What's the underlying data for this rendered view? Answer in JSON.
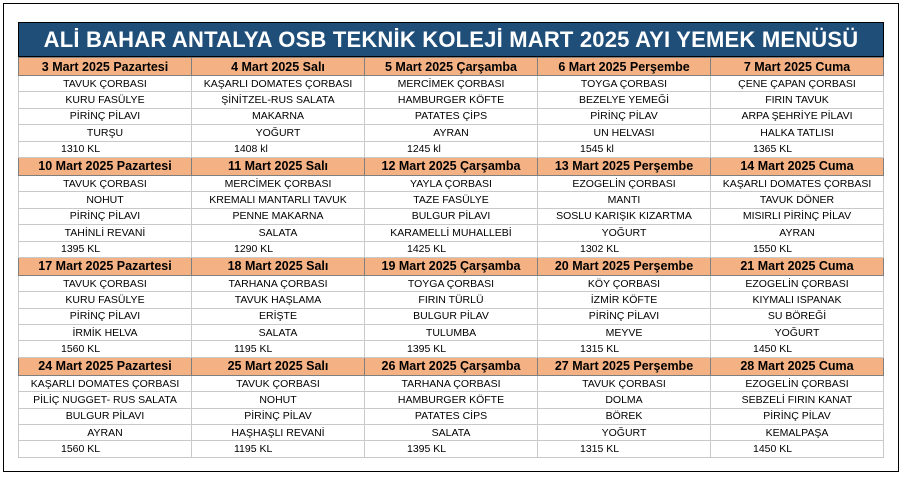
{
  "title": "ALİ BAHAR ANTALYA OSB TEKNİK KOLEJİ MART 2025 AYI YEMEK MENÜSÜ",
  "weeks": [
    {
      "days": [
        {
          "date": "3 Mart 2025 Pazartesi",
          "items": [
            "TAVUK ÇORBASI",
            "KURU FASÜLYE",
            "PİRİNÇ PİLAVI",
            "TURŞU"
          ],
          "kcal": "1310 KL"
        },
        {
          "date": "4 Mart 2025 Salı",
          "items": [
            "KAŞARLI DOMATES ÇORBASI",
            "ŞİNİTZEL-RUS SALATA",
            "MAKARNA",
            "YOĞURT"
          ],
          "kcal": "1408 kl"
        },
        {
          "date": "5 Mart 2025 Çarşamba",
          "items": [
            "MERCİMEK ÇORBASI",
            "HAMBURGER KÖFTE",
            "PATATES ÇİPS",
            "AYRAN"
          ],
          "kcal": "1245 kl"
        },
        {
          "date": "6 Mart 2025 Perşembe",
          "items": [
            "TOYGA ÇORBASI",
            "BEZELYE YEMEĞİ",
            "PİRİNÇ PİLAV",
            "UN HELVASI"
          ],
          "kcal": "1545 kl"
        },
        {
          "date": "7 Mart 2025 Cuma",
          "items": [
            "ÇENE ÇAPAN ÇORBASI",
            "FIRIN TAVUK",
            "ARPA ŞEHRİYE PİLAVI",
            "HALKA TATLISI"
          ],
          "kcal": "1365 KL"
        }
      ]
    },
    {
      "days": [
        {
          "date": "10 Mart 2025 Pazartesi",
          "items": [
            "TAVUK ÇORBASI",
            "NOHUT",
            "PİRİNÇ PİLAVI",
            "TAHİNLİ REVANİ"
          ],
          "kcal": "1395 KL"
        },
        {
          "date": "11 Mart 2025 Salı",
          "items": [
            "MERCİMEK ÇORBASI",
            "KREMALI MANTARLI TAVUK",
            "PENNE MAKARNA",
            "SALATA"
          ],
          "kcal": "1290 KL"
        },
        {
          "date": "12 Mart 2025 Çarşamba",
          "items": [
            "YAYLA ÇORBASI",
            "TAZE FASÜLYE",
            "BULGUR PİLAVI",
            "KARAMELLİ MUHALLEBİ"
          ],
          "kcal": "1425 KL"
        },
        {
          "date": "13 Mart 2025 Perşembe",
          "items": [
            "EZOGELİN ÇORBASI",
            "MANTI",
            "SOSLU KARIŞIK KIZARTMA",
            "YOĞURT"
          ],
          "kcal": "1302 KL"
        },
        {
          "date": "14 Mart 2025 Cuma",
          "items": [
            "KAŞARLI DOMATES ÇORBASI",
            "TAVUK DÖNER",
            "MISIRLI PİRİNÇ PİLAV",
            "AYRAN"
          ],
          "kcal": "1550 KL"
        }
      ]
    },
    {
      "days": [
        {
          "date": "17 Mart 2025 Pazartesi",
          "items": [
            "TAVUK ÇORBASI",
            "KURU FASÜLYE",
            "PİRİNÇ PİLAVI",
            "İRMİK HELVA"
          ],
          "kcal": "1560 KL"
        },
        {
          "date": "18 Mart 2025 Salı",
          "items": [
            "TARHANA ÇORBASI",
            "TAVUK HAŞLAMA",
            "ERİŞTE",
            "SALATA"
          ],
          "kcal": "1195 KL"
        },
        {
          "date": "19 Mart 2025 Çarşamba",
          "items": [
            "TOYGA ÇORBASI",
            "FIRIN TÜRLÜ",
            "BULGUR PİLAV",
            "TULUMBA"
          ],
          "kcal": "1395 KL"
        },
        {
          "date": "20 Mart 2025 Perşembe",
          "items": [
            "KÖY ÇORBASI",
            "İZMİR KÖFTE",
            "PİRİNÇ PİLAVI",
            "MEYVE"
          ],
          "kcal": "1315 KL"
        },
        {
          "date": "21 Mart 2025 Cuma",
          "items": [
            "EZOGELİN ÇORBASI",
            "KIYMALI ISPANAK",
            "SU BÖREĞİ",
            "YOĞURT"
          ],
          "kcal": "1450 KL"
        }
      ]
    },
    {
      "days": [
        {
          "date": "24 Mart 2025 Pazartesi",
          "items": [
            "KAŞARLI DOMATES ÇORBASI",
            "PİLİÇ NUGGET- RUS SALATA",
            "BULGUR PİLAVI",
            "AYRAN"
          ],
          "kcal": "1560 KL"
        },
        {
          "date": "25 Mart 2025 Salı",
          "items": [
            "TAVUK ÇORBASI",
            "NOHUT",
            "PİRİNÇ PİLAV",
            "HAŞHAŞLI REVANİ"
          ],
          "kcal": "1195 KL"
        },
        {
          "date": "26 Mart 2025 Çarşamba",
          "items": [
            "TARHANA ÇORBASI",
            "HAMBURGER KÖFTE",
            "PATATES CİPS",
            "SALATA"
          ],
          "kcal": "1395 KL"
        },
        {
          "date": "27 Mart 2025 Perşembe",
          "items": [
            "TAVUK ÇORBASI",
            "DOLMA",
            "BÖREK",
            "YOĞURT"
          ],
          "kcal": "1315 KL"
        },
        {
          "date": "28 Mart 2025 Cuma",
          "items": [
            "EZOGELİN ÇORBASI",
            "SEBZELİ FIRIN KANAT",
            "PİRİNÇ PİLAV",
            "KEMALPAŞA"
          ],
          "kcal": "1450 KL"
        }
      ]
    }
  ]
}
